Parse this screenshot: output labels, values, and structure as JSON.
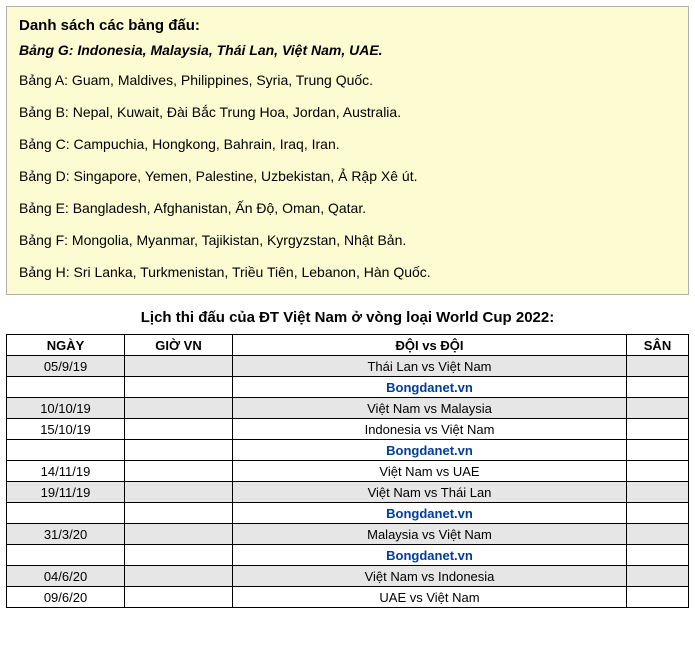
{
  "groups": {
    "title": "Danh sách các bảng đấu:",
    "highlight": "Bảng G: Indonesia, Malaysia, Thái Lan, Việt Nam, UAE.",
    "lines": [
      "Bảng A: Guam, Maldives, Philippines, Syria, Trung Quốc.",
      "Bảng B: Nepal, Kuwait, Đài Bắc Trung Hoa, Jordan, Australia.",
      "Bảng C: Campuchia, Hongkong, Bahrain, Iraq, Iran.",
      "Bảng D: Singapore, Yemen, Palestine, Uzbekistan, Ả Rập Xê út.",
      "Bảng E: Bangladesh, Afghanistan, Ấn Độ, Oman, Qatar.",
      "Bảng F: Mongolia, Myanmar, Tajikistan, Kyrgyzstan, Nhật Bản.",
      "Bảng H: Sri Lanka, Turkmenistan, Triều Tiên, Lebanon, Hàn Quốc."
    ]
  },
  "schedule": {
    "title": "Lịch thi đấu của ĐT Việt Nam ở vòng loại World Cup 2022:",
    "headers": {
      "ngay": "NGÀY",
      "gio": "GIỜ VN",
      "doi": "ĐỘI vs ĐỘI",
      "san": "SÂN"
    },
    "promo_text": "Bongdanet.vn",
    "rows": [
      {
        "type": "match",
        "gray": true,
        "ngay": "05/9/19",
        "gio": "",
        "doi": "Thái Lan vs Việt Nam",
        "san": ""
      },
      {
        "type": "promo"
      },
      {
        "type": "match",
        "gray": true,
        "ngay": "10/10/19",
        "gio": "",
        "doi": "Việt Nam vs Malaysia",
        "san": ""
      },
      {
        "type": "match",
        "gray": false,
        "ngay": "15/10/19",
        "gio": "",
        "doi": "Indonesia vs Việt Nam",
        "san": ""
      },
      {
        "type": "promo"
      },
      {
        "type": "match",
        "gray": false,
        "ngay": "14/11/19",
        "gio": "",
        "doi": "Việt Nam vs UAE",
        "san": ""
      },
      {
        "type": "match",
        "gray": true,
        "ngay": "19/11/19",
        "gio": "",
        "doi": "Việt Nam vs Thái Lan",
        "san": ""
      },
      {
        "type": "promo"
      },
      {
        "type": "match",
        "gray": true,
        "ngay": "31/3/20",
        "gio": "",
        "doi": "Malaysia vs Việt Nam",
        "san": ""
      },
      {
        "type": "promo"
      },
      {
        "type": "match",
        "gray": true,
        "ngay": "04/6/20",
        "gio": "",
        "doi": "Việt Nam vs Indonesia",
        "san": ""
      },
      {
        "type": "match",
        "gray": false,
        "ngay": "09/6/20",
        "gio": "",
        "doi": "UAE vs Việt Nam",
        "san": ""
      }
    ]
  }
}
